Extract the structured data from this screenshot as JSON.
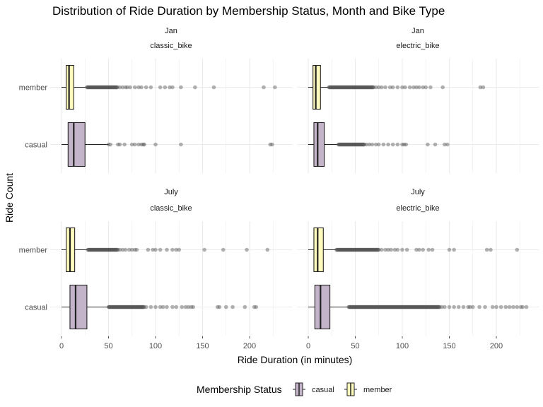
{
  "chart_data": {
    "type": "boxplot",
    "title": "Distribution of Ride Duration by Membership Status, Month and Bike Type",
    "xlabel": "Ride Duration (in minutes)",
    "ylabel": "Ride Count",
    "xlim": [
      0,
      235
    ],
    "x_ticks": [
      0,
      50,
      100,
      150,
      200
    ],
    "categories": [
      "member",
      "casual"
    ],
    "colors": {
      "casual": "#c4b4c9",
      "member": "#fffbbd",
      "outlier": "#555555",
      "grid": "#ebebeb"
    },
    "legend": {
      "title": "Membership Status",
      "entries": [
        "casual",
        "member"
      ],
      "position": "bottom"
    },
    "panels": [
      {
        "month": "Jan",
        "bike_type": "classic_bike",
        "series": [
          {
            "name": "member",
            "q1": 5,
            "median": 8,
            "q3": 13,
            "whisker_low": 0,
            "whisker_high": 27,
            "dense_outliers": [
              27,
              60
            ],
            "outliers": [
              62,
              65,
              68,
              70,
              73,
              78,
              82,
              85,
              90,
              95,
              105,
              110,
              115,
              118,
              127,
              142,
              162,
              215,
              227
            ]
          },
          {
            "name": "casual",
            "q1": 7,
            "median": 13,
            "q3": 25,
            "whisker_low": 0,
            "whisker_high": 50,
            "dense_outliers": [],
            "outliers": [
              50,
              52,
              60,
              62,
              67,
              75,
              78,
              82,
              85,
              87,
              88,
              100,
              127,
              222,
              224
            ]
          }
        ]
      },
      {
        "month": "Jan",
        "bike_type": "electric_bike",
        "series": [
          {
            "name": "member",
            "q1": 5,
            "median": 8,
            "q3": 13,
            "whisker_low": 0,
            "whisker_high": 22,
            "dense_outliers": [
              22,
              70
            ],
            "outliers": [
              72,
              75,
              78,
              82,
              87,
              90,
              95,
              100,
              103,
              108,
              112,
              115,
              118,
              122,
              125,
              130,
              143,
              183,
              186
            ]
          },
          {
            "name": "casual",
            "q1": 6,
            "median": 10,
            "q3": 17,
            "whisker_low": 0,
            "whisker_high": 32,
            "dense_outliers": [
              32,
              60
            ],
            "outliers": [
              62,
              65,
              68,
              72,
              75,
              80,
              85,
              90,
              95,
              100,
              102,
              104,
              127,
              135,
              145,
              148
            ]
          }
        ]
      },
      {
        "month": "July",
        "bike_type": "classic_bike",
        "series": [
          {
            "name": "member",
            "q1": 5,
            "median": 9,
            "q3": 14,
            "whisker_low": 0,
            "whisker_high": 28,
            "dense_outliers": [
              28,
              60
            ],
            "outliers": [
              62,
              65,
              68,
              72,
              75,
              78,
              80,
              92,
              97,
              100,
              105,
              112,
              118,
              122,
              125,
              152,
              172,
              197,
              219
            ]
          },
          {
            "name": "casual",
            "q1": 9,
            "median": 15,
            "q3": 27,
            "whisker_low": 0,
            "whisker_high": 50,
            "dense_outliers": [
              50,
              88
            ],
            "outliers": [
              90,
              95,
              100,
              105,
              108,
              112,
              118,
              122,
              128,
              132,
              135,
              138,
              140,
              166,
              168,
              175,
              182,
              195,
              205,
              207
            ]
          }
        ]
      },
      {
        "month": "July",
        "bike_type": "electric_bike",
        "series": [
          {
            "name": "member",
            "q1": 6,
            "median": 10,
            "q3": 16,
            "whisker_low": 0,
            "whisker_high": 30,
            "dense_outliers": [
              30,
              75
            ],
            "outliers": [
              78,
              82,
              85,
              88,
              92,
              95,
              100,
              105,
              115,
              118,
              122,
              128,
              132,
              150,
              155,
              190,
              194,
              222
            ]
          },
          {
            "name": "casual",
            "q1": 7,
            "median": 13,
            "q3": 23,
            "whisker_low": 0,
            "whisker_high": 43,
            "dense_outliers": [
              43,
              140
            ],
            "outliers": [
              142,
              145,
              150,
              155,
              160,
              165,
              170,
              172,
              175,
              182,
              188,
              196,
              200,
              205,
              210,
              214,
              218,
              222,
              226,
              228,
              232
            ]
          }
        ]
      }
    ]
  }
}
